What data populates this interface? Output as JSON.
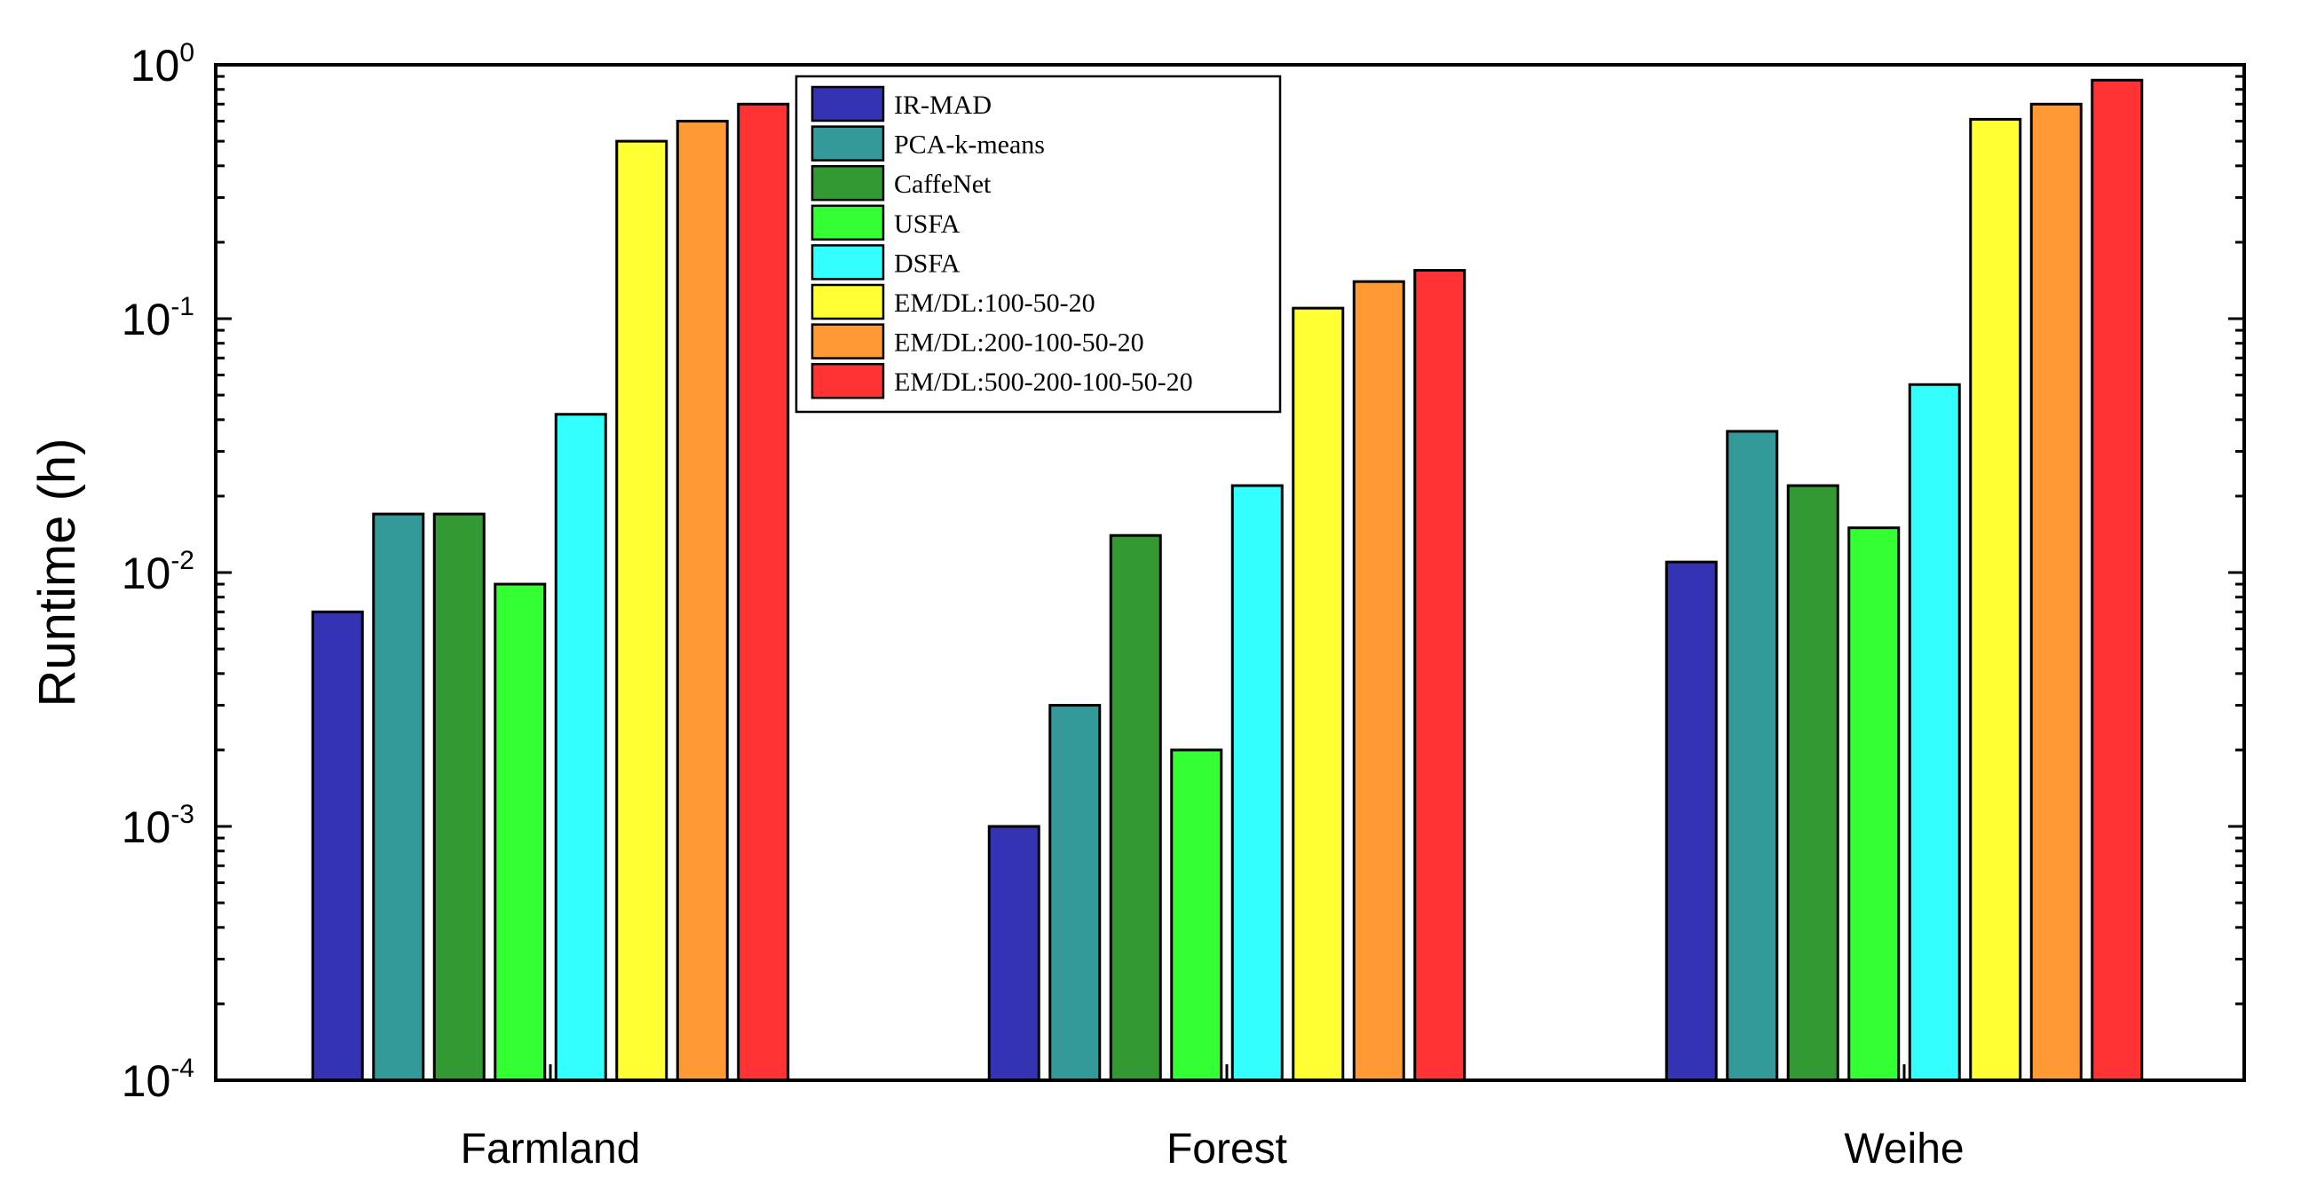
{
  "chart_data": {
    "type": "bar",
    "title": "",
    "xlabel": "",
    "ylabel": "Runtime (h)",
    "yscale": "log",
    "ylim": [
      0.0001,
      1
    ],
    "yticks": [
      {
        "value": 1,
        "base": "10",
        "exp": "0"
      },
      {
        "value": 0.1,
        "base": "10",
        "exp": "-1"
      },
      {
        "value": 0.01,
        "base": "10",
        "exp": "-2"
      },
      {
        "value": 0.001,
        "base": "10",
        "exp": "-3"
      },
      {
        "value": 0.0001,
        "base": "10",
        "exp": "-4"
      }
    ],
    "categories": [
      "Farmland",
      "Forest",
      "Weihe"
    ],
    "legend_position": "top-center",
    "series": [
      {
        "name": "IR-MAD",
        "color": "#3333b3",
        "values": [
          0.007,
          0.001,
          0.011
        ]
      },
      {
        "name": "PCA-k-means",
        "color": "#339999",
        "values": [
          0.017,
          0.003,
          0.036
        ]
      },
      {
        "name": "CaffeNet",
        "color": "#339933",
        "values": [
          0.017,
          0.014,
          0.022
        ]
      },
      {
        "name": "USFA",
        "color": "#33ff33",
        "values": [
          0.009,
          0.002,
          0.015
        ]
      },
      {
        "name": "DSFA",
        "color": "#33ffff",
        "values": [
          0.042,
          0.022,
          0.055
        ]
      },
      {
        "name": "EM/DL:100-50-20",
        "color": "#ffff33",
        "values": [
          0.5,
          0.11,
          0.61
        ]
      },
      {
        "name": "EM/DL:200-100-50-20",
        "color": "#ff9933",
        "values": [
          0.6,
          0.14,
          0.7
        ]
      },
      {
        "name": "EM/DL:500-200-100-50-20",
        "color": "#ff3333",
        "values": [
          0.7,
          0.155,
          0.87
        ]
      }
    ]
  }
}
